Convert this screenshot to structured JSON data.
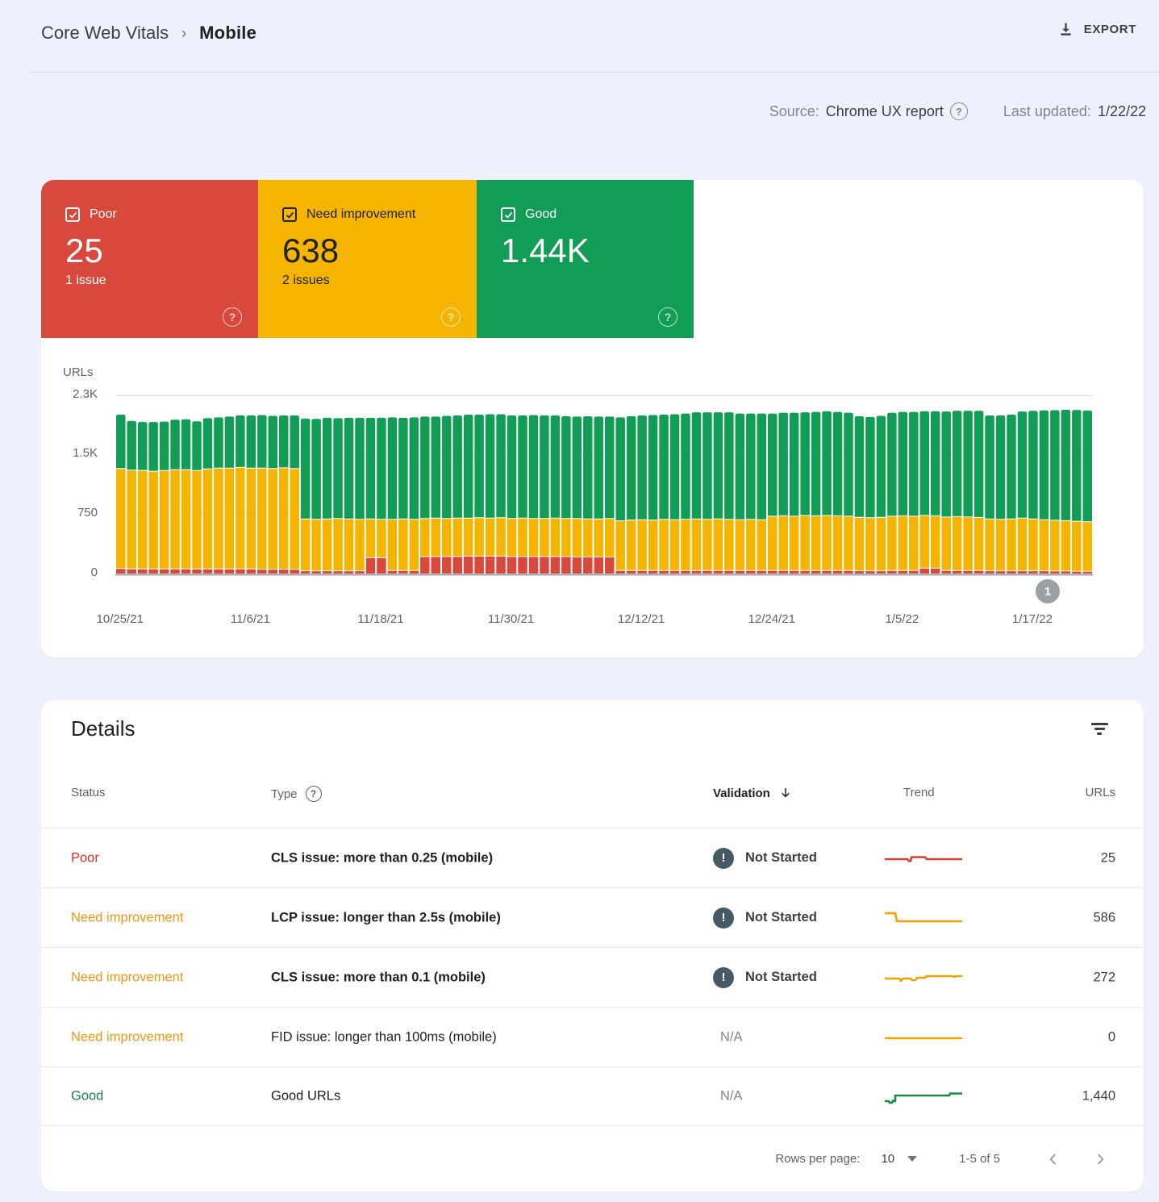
{
  "breadcrumb": {
    "parent": "Core Web Vitals",
    "separator": "›",
    "current": "Mobile"
  },
  "export_label": "EXPORT",
  "source_bar": {
    "source_label": "Source:",
    "source_value": "Chrome UX report",
    "updated_label": "Last updated:",
    "updated_value": "1/22/22"
  },
  "cards": [
    {
      "label": "Poor",
      "value": "25",
      "issues": "1 issue",
      "bg": "#d8483c",
      "theme": "light"
    },
    {
      "label": "Need improvement",
      "value": "638",
      "issues": "2 issues",
      "bg": "#f4b400",
      "theme": "dark"
    },
    {
      "label": "Good",
      "value": "1.44K",
      "issues": "",
      "bg": "#129d56",
      "theme": "light"
    }
  ],
  "chart": {
    "ylabel": "URLs",
    "yticks": [
      "2.3K",
      "1.5K",
      "750",
      "0"
    ],
    "marker_label": "1"
  },
  "chart_data": {
    "type": "bar",
    "stacked": true,
    "x_start": "10/25/21",
    "x_end": "1/22/22",
    "ylim": [
      0,
      2300
    ],
    "grid": "horizontal-faint",
    "legend_position": "none",
    "xticks": [
      {
        "day": 0,
        "label": "10/25/21"
      },
      {
        "day": 12,
        "label": "11/6/21"
      },
      {
        "day": 24,
        "label": "11/18/21"
      },
      {
        "day": 36,
        "label": "11/30/21"
      },
      {
        "day": 48,
        "label": "12/12/21"
      },
      {
        "day": 60,
        "label": "12/24/21"
      },
      {
        "day": 72,
        "label": "1/5/22"
      },
      {
        "day": 84,
        "label": "1/17/22"
      }
    ],
    "series": [
      {
        "name": "Poor",
        "color": "#d8483c",
        "values": [
          60,
          55,
          55,
          55,
          55,
          55,
          55,
          55,
          55,
          55,
          55,
          55,
          55,
          50,
          50,
          50,
          50,
          30,
          30,
          30,
          30,
          30,
          30,
          200,
          200,
          35,
          35,
          35,
          215,
          215,
          215,
          215,
          220,
          220,
          220,
          220,
          215,
          215,
          215,
          215,
          215,
          215,
          210,
          210,
          210,
          210,
          35,
          35,
          35,
          35,
          35,
          35,
          35,
          35,
          35,
          35,
          35,
          35,
          35,
          35,
          35,
          35,
          35,
          35,
          35,
          35,
          35,
          35,
          30,
          30,
          30,
          35,
          35,
          35,
          65,
          65,
          35,
          35,
          35,
          35,
          30,
          30,
          30,
          30,
          30,
          30,
          28,
          28,
          25,
          25
        ]
      },
      {
        "name": "Need improvement",
        "color": "#f4b400",
        "values": [
          1290,
          1275,
          1270,
          1260,
          1270,
          1280,
          1280,
          1270,
          1290,
          1300,
          1300,
          1310,
          1300,
          1305,
          1300,
          1310,
          1300,
          670,
          665,
          670,
          675,
          670,
          665,
          500,
          495,
          660,
          665,
          660,
          490,
          495,
          490,
          495,
          490,
          495,
          490,
          495,
          490,
          495,
          490,
          490,
          495,
          490,
          495,
          490,
          490,
          495,
          640,
          650,
          655,
          650,
          660,
          655,
          660,
          665,
          660,
          665,
          660,
          655,
          660,
          655,
          700,
          705,
          700,
          710,
          705,
          710,
          705,
          700,
          690,
          685,
          690,
          700,
          705,
          700,
          680,
          675,
          690,
          695,
          690,
          685,
          670,
          665,
          670,
          680,
          670,
          660,
          655,
          650,
          645,
          638
        ]
      },
      {
        "name": "Good",
        "color": "#129d56",
        "values": [
          700,
          640,
          630,
          640,
          635,
          650,
          655,
          640,
          660,
          660,
          670,
          675,
          685,
          690,
          685,
          680,
          690,
          1300,
          1300,
          1310,
          1300,
          1310,
          1315,
          1310,
          1315,
          1320,
          1310,
          1320,
          1320,
          1315,
          1330,
          1330,
          1340,
          1335,
          1345,
          1340,
          1335,
          1330,
          1340,
          1335,
          1330,
          1325,
          1320,
          1330,
          1325,
          1320,
          1340,
          1345,
          1350,
          1360,
          1355,
          1365,
          1370,
          1380,
          1385,
          1380,
          1385,
          1375,
          1370,
          1375,
          1330,
          1335,
          1340,
          1335,
          1345,
          1350,
          1345,
          1340,
          1310,
          1305,
          1315,
          1340,
          1345,
          1350,
          1350,
          1355,
          1365,
          1370,
          1375,
          1380,
          1340,
          1345,
          1350,
          1380,
          1400,
          1415,
          1425,
          1435,
          1440,
          1440
        ]
      }
    ]
  },
  "details": {
    "title": "Details",
    "columns": {
      "status": "Status",
      "type": "Type",
      "validation": "Validation",
      "trend": "Trend",
      "urls": "URLs"
    },
    "rows": [
      {
        "status": "Poor",
        "status_color": "#d93025",
        "type": "CLS issue: more than 0.25 (mobile)",
        "type_bold": true,
        "validation": "Not Started",
        "validation_icon": true,
        "trend_shape": "bump-middle",
        "trend_color": "#cf4337",
        "urls": "25"
      },
      {
        "status": "Need improvement",
        "status_color": "#f09614",
        "type": "LCP issue: longer than 2.5s (mobile)",
        "type_bold": true,
        "validation": "Not Started",
        "validation_icon": true,
        "trend_shape": "step-down",
        "trend_color": "#f4a100",
        "urls": "586"
      },
      {
        "status": "Need improvement",
        "status_color": "#f09614",
        "type": "CLS issue: more than 0.1 (mobile)",
        "type_bold": true,
        "validation": "Not Started",
        "validation_icon": true,
        "trend_shape": "wobble-up",
        "trend_color": "#f4a100",
        "urls": "272"
      },
      {
        "status": "Need improvement",
        "status_color": "#f09614",
        "type": "FID issue: longer than 100ms (mobile)",
        "type_bold": false,
        "validation": "N/A",
        "validation_icon": false,
        "trend_shape": "flat",
        "trend_color": "#f4a100",
        "urls": "0"
      },
      {
        "status": "Good",
        "status_color": "#188548",
        "type": "Good URLs",
        "type_bold": false,
        "validation": "N/A",
        "validation_icon": false,
        "trend_shape": "step-up",
        "trend_color": "#188c44",
        "urls": "1,440"
      }
    ]
  },
  "pagination": {
    "rows_per_page_label": "Rows per page:",
    "rows_per_page_value": "10",
    "range": "1-5 of 5"
  }
}
